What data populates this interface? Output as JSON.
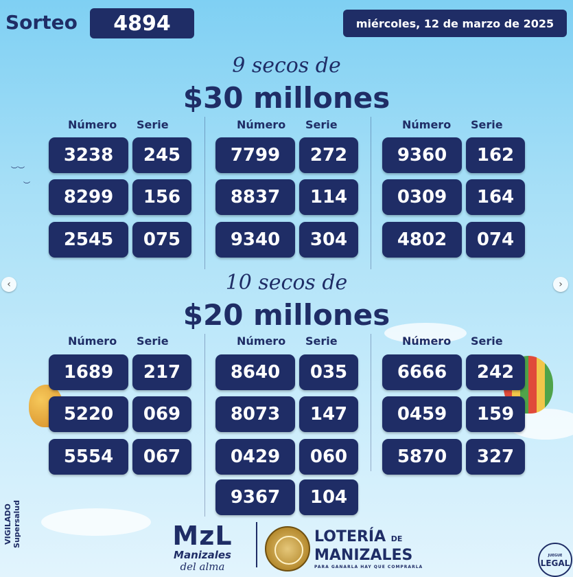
{
  "header": {
    "sorteo_label": "Sorteo",
    "sorteo_number": "4894",
    "date": "miércoles, 12 de marzo de 2025"
  },
  "section1": {
    "script": "9 secos de",
    "amount": "$30 millones",
    "groups": [
      {
        "col_num": "Número",
        "col_ser": "Serie",
        "rows": [
          {
            "numero": "3238",
            "serie": "245"
          },
          {
            "numero": "8299",
            "serie": "156"
          },
          {
            "numero": "2545",
            "serie": "075"
          }
        ]
      },
      {
        "col_num": "Número",
        "col_ser": "Serie",
        "rows": [
          {
            "numero": "7799",
            "serie": "272"
          },
          {
            "numero": "8837",
            "serie": "114"
          },
          {
            "numero": "9340",
            "serie": "304"
          }
        ]
      },
      {
        "col_num": "Número",
        "col_ser": "Serie",
        "rows": [
          {
            "numero": "9360",
            "serie": "162"
          },
          {
            "numero": "0309",
            "serie": "164"
          },
          {
            "numero": "4802",
            "serie": "074"
          }
        ]
      }
    ]
  },
  "section2": {
    "script": "10 secos de",
    "amount": "$20 millones",
    "groups": [
      {
        "col_num": "Número",
        "col_ser": "Serie",
        "rows": [
          {
            "numero": "1689",
            "serie": "217"
          },
          {
            "numero": "5220",
            "serie": "069"
          },
          {
            "numero": "5554",
            "serie": "067"
          }
        ]
      },
      {
        "col_num": "Número",
        "col_ser": "Serie",
        "rows": [
          {
            "numero": "8640",
            "serie": "035"
          },
          {
            "numero": "8073",
            "serie": "147"
          },
          {
            "numero": "0429",
            "serie": "060"
          },
          {
            "numero": "9367",
            "serie": "104"
          }
        ]
      },
      {
        "col_num": "Número",
        "col_ser": "Serie",
        "rows": [
          {
            "numero": "6666",
            "serie": "242"
          },
          {
            "numero": "0459",
            "serie": "159"
          },
          {
            "numero": "5870",
            "serie": "327"
          }
        ]
      }
    ]
  },
  "footer": {
    "mzl_logo": "MzL",
    "mzl_sub1": "Manizales",
    "mzl_sub2": "del alma",
    "loteria_line1": "LOTERÍA",
    "loteria_de": "DE",
    "loteria_line2": "MANIZALES",
    "loteria_tagline": "PARA GANARLA HAY QUE COMPRARLA",
    "vigilado": "VIGILADO Supersalud",
    "legal_top": "JUEGUE",
    "legal_main": "LEGAL"
  },
  "nav": {
    "prev_icon": "‹",
    "next_icon": "›"
  },
  "colors": {
    "navy": "#1f2d66",
    "sky": "#a9e0f7"
  }
}
